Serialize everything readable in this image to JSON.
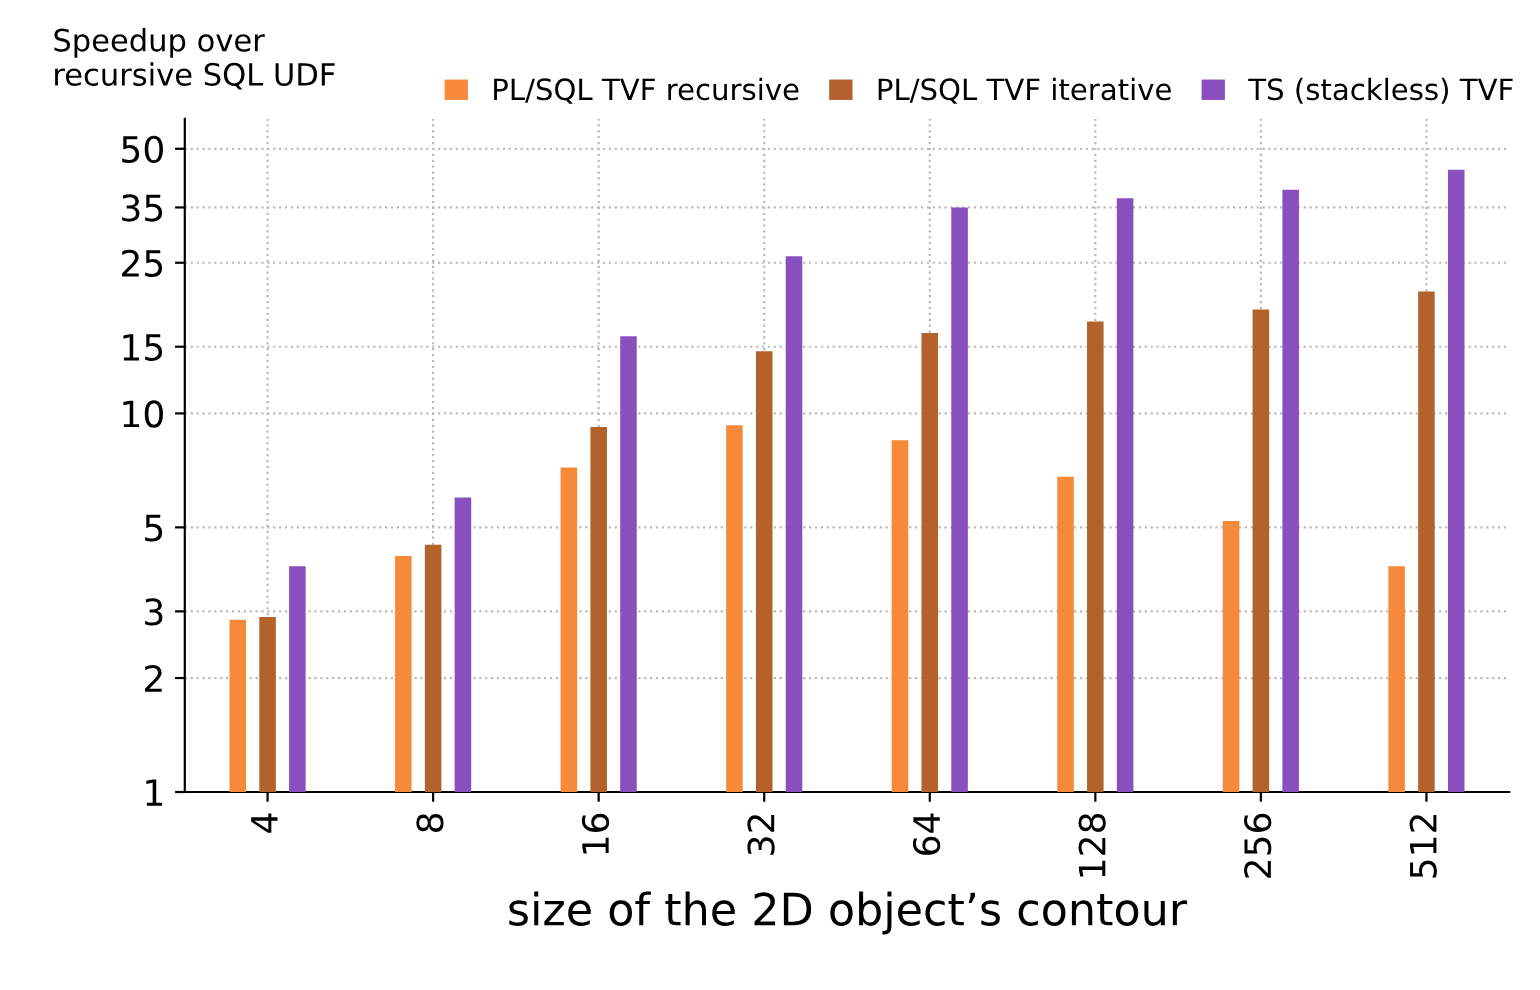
{
  "chart_data": {
    "type": "bar",
    "ylabel": "Speedup over\nrecursive SQL UDF",
    "xlabel": "size of the 2D object’s contour",
    "categories": [
      "4",
      "8",
      "16",
      "32",
      "64",
      "128",
      "256",
      "512"
    ],
    "series": [
      {
        "name": "PL/SQL TVF recursive",
        "color": "#f7893b",
        "values": [
          2.85,
          4.2,
          7.2,
          9.3,
          8.5,
          6.8,
          5.2,
          3.95
        ]
      },
      {
        "name": "PL/SQL TVF iterative",
        "color": "#b4622b",
        "values": [
          2.9,
          4.5,
          9.2,
          14.6,
          16.3,
          17.5,
          18.8,
          21
        ]
      },
      {
        "name": "TS (stackless) TVF",
        "color": "#8a4fbf",
        "values": [
          3.95,
          6,
          16,
          26,
          35,
          37,
          39,
          44
        ]
      }
    ],
    "log": "y",
    "ylim": [
      1,
      60
    ],
    "yticks": [
      1,
      2,
      3,
      5,
      10,
      15,
      25,
      35,
      50
    ],
    "grid": true,
    "legend": "top"
  }
}
